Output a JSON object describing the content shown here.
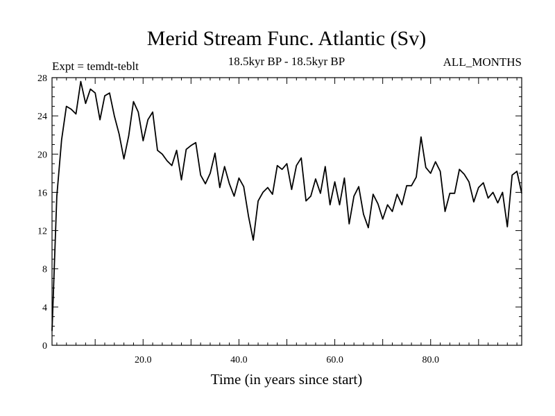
{
  "chart_data": {
    "type": "line",
    "title": "Merid Stream Func. Atlantic (Sv)",
    "subtitle_left": "Expt = temdt-teblt",
    "subtitle_center": "18.5kyr BP - 18.5kyr BP",
    "subtitle_right": "ALL_MONTHS",
    "xlabel": "Time (in years since start)",
    "ylabel": "",
    "xlim": [
      1,
      99
    ],
    "ylim": [
      0,
      28
    ],
    "x_ticks": [
      20,
      40,
      60,
      80
    ],
    "x_tick_labels": [
      "20.0",
      "40.0",
      "60.0",
      "80.0"
    ],
    "y_ticks": [
      0,
      4,
      8,
      12,
      16,
      20,
      24,
      28
    ],
    "y_tick_labels": [
      "0",
      "4",
      "8",
      "12",
      "16",
      "20",
      "24",
      "28"
    ],
    "grid": false,
    "series": [
      {
        "name": "Merid Stream Func.",
        "color": "#000000",
        "x": [
          1,
          2,
          3,
          4,
          5,
          6,
          7,
          8,
          9,
          10,
          11,
          12,
          13,
          14,
          15,
          16,
          17,
          18,
          19,
          20,
          21,
          22,
          23,
          24,
          25,
          26,
          27,
          28,
          29,
          30,
          31,
          32,
          33,
          34,
          35,
          36,
          37,
          38,
          39,
          40,
          41,
          42,
          43,
          44,
          45,
          46,
          47,
          48,
          49,
          50,
          51,
          52,
          53,
          54,
          55,
          56,
          57,
          58,
          59,
          60,
          61,
          62,
          63,
          64,
          65,
          66,
          67,
          68,
          69,
          70,
          71,
          72,
          73,
          74,
          75,
          76,
          77,
          78,
          79,
          80,
          81,
          82,
          83,
          84,
          85,
          86,
          87,
          88,
          89,
          90,
          91,
          92,
          93,
          94,
          95,
          96,
          97,
          98,
          99
        ],
        "values": [
          1.5,
          15.6,
          21.5,
          25.0,
          24.7,
          24.2,
          27.6,
          25.3,
          26.8,
          26.4,
          23.6,
          26.1,
          26.4,
          24.0,
          22.1,
          19.5,
          21.9,
          25.5,
          24.4,
          21.4,
          23.6,
          24.4,
          20.4,
          20.0,
          19.3,
          18.8,
          20.4,
          17.3,
          20.5,
          20.9,
          21.2,
          17.8,
          16.9,
          18.0,
          20.1,
          16.5,
          18.7,
          16.9,
          15.6,
          17.5,
          16.6,
          13.5,
          11.0,
          15.1,
          16.0,
          16.5,
          15.8,
          18.8,
          18.4,
          19.0,
          16.3,
          18.8,
          19.6,
          15.1,
          15.6,
          17.4,
          15.9,
          18.7,
          14.7,
          17.1,
          14.7,
          17.5,
          12.7,
          15.6,
          16.6,
          13.7,
          12.3,
          15.8,
          14.8,
          13.2,
          14.7,
          14.0,
          15.8,
          14.7,
          16.7,
          16.7,
          17.6,
          21.8,
          18.6,
          18.0,
          19.2,
          18.2,
          14.0,
          15.9,
          15.9,
          18.4,
          17.9,
          17.1,
          15.0,
          16.5,
          17.0,
          15.4,
          16.0,
          14.9,
          16.0,
          12.4,
          17.8,
          18.2,
          15.9
        ]
      }
    ]
  }
}
